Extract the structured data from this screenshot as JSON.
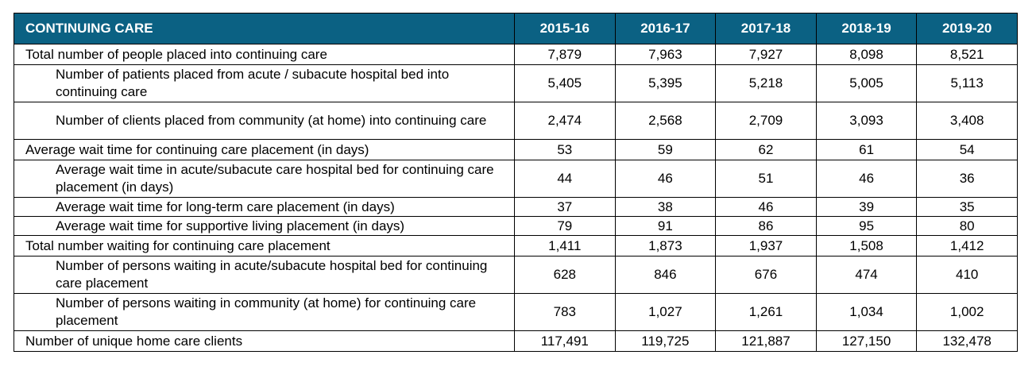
{
  "header": {
    "title": "CONTINUING CARE",
    "years": [
      "2015-16",
      "2016-17",
      "2017-18",
      "2018-19",
      "2019-20"
    ]
  },
  "rows": [
    {
      "label": "Total number of people placed into continuing care",
      "values": [
        "7,879",
        "7,963",
        "7,927",
        "8,098",
        "8,521"
      ]
    },
    {
      "label": "Number of patients placed from acute / subacute hospital bed into continuing care",
      "values": [
        "5,405",
        "5,395",
        "5,218",
        "5,005",
        "5,113"
      ]
    },
    {
      "label": "Number of clients placed from community (at home) into continuing care",
      "values": [
        "2,474",
        "2,568",
        "2,709",
        "3,093",
        "3,408"
      ]
    },
    {
      "label": "Average wait time for continuing care placement (in days)",
      "values": [
        "53",
        "59",
        "62",
        "61",
        "54"
      ]
    },
    {
      "label": "Average wait time in acute/subacute care hospital bed for continuing care placement (in days)",
      "values": [
        "44",
        "46",
        "51",
        "46",
        "36"
      ]
    },
    {
      "label": "Average wait time for long-term care placement (in days)",
      "values": [
        "37",
        "38",
        "46",
        "39",
        "35"
      ]
    },
    {
      "label": "Average wait time for supportive living placement (in days)",
      "values": [
        "79",
        "91",
        "86",
        "95",
        "80"
      ]
    },
    {
      "label": "Total number waiting for continuing care placement",
      "values": [
        "1,411",
        "1,873",
        "1,937",
        "1,508",
        "1,412"
      ]
    },
    {
      "label": "Number of persons waiting in acute/subacute hospital bed for continuing care placement",
      "values": [
        "628",
        "846",
        "676",
        "474",
        "410"
      ]
    },
    {
      "label": "Number of persons waiting in community (at home) for continuing care placement",
      "values": [
        "783",
        "1,027",
        "1,261",
        "1,034",
        "1,002"
      ]
    },
    {
      "label": "Number of unique home care clients",
      "values": [
        "117,491",
        "119,725",
        "121,887",
        "127,150",
        "132,478"
      ]
    }
  ],
  "colors": {
    "header_bg": "#0b6183",
    "header_text": "#ffffff",
    "border": "#000000"
  }
}
